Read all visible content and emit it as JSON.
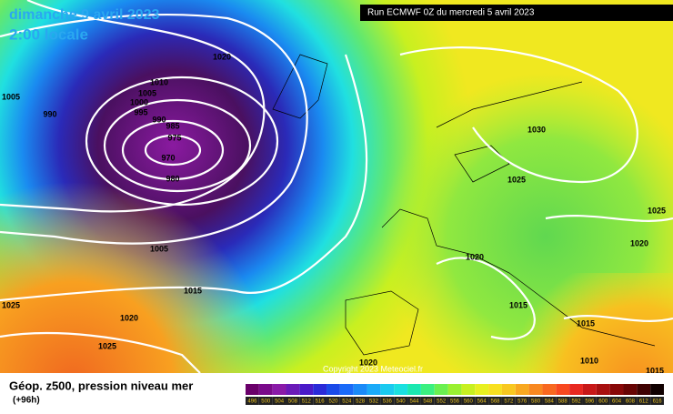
{
  "header": {
    "date": "dimanche 9 avril 2023",
    "time": "2:00 locale",
    "run": "Run ECMWF 0Z du mercredi 5 avril 2023"
  },
  "isobar_labels": [
    "1005",
    "990",
    "1020",
    "1010",
    "1005",
    "1000",
    "995",
    "990",
    "985",
    "975",
    "970",
    "980",
    "1005",
    "1015",
    "1025",
    "1020",
    "1025",
    "1030",
    "1025",
    "1025",
    "1020",
    "1020",
    "1015",
    "1015",
    "1010",
    "1015",
    "1020"
  ],
  "copyright": "Copyright 2023 Meteociel.fr",
  "footer": {
    "title": "Géop. z500, pression niveau mer",
    "lead": "(+96h)"
  },
  "legend": {
    "labels": [
      "496",
      "500",
      "504",
      "508",
      "512",
      "516",
      "520",
      "524",
      "528",
      "532",
      "536",
      "540",
      "544",
      "548",
      "552",
      "556",
      "560",
      "564",
      "568",
      "572",
      "576",
      "580",
      "584",
      "588",
      "592",
      "596",
      "600",
      "604",
      "608",
      "612",
      "616"
    ],
    "colors": [
      "#6a006a",
      "#7a0a8a",
      "#8a1aa8",
      "#6a1ab8",
      "#4a1ac8",
      "#2a2ad8",
      "#1a4ae8",
      "#1a6af8",
      "#1a8af8",
      "#1aaaf8",
      "#1acaf0",
      "#1ae0e0",
      "#1ae8b0",
      "#3af080",
      "#6af050",
      "#9af030",
      "#c8f020",
      "#e8f020",
      "#f8e020",
      "#f8c820",
      "#f8a820",
      "#f88820",
      "#f86820",
      "#f84820",
      "#e82820",
      "#c81818",
      "#a81010",
      "#880808",
      "#680404",
      "#400202",
      "#100000"
    ]
  }
}
